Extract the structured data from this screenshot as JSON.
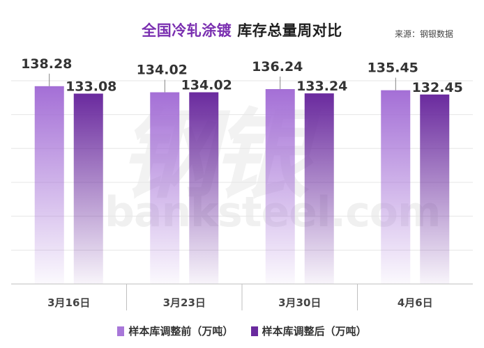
{
  "title": {
    "highlight": "全国冷轧涂镀",
    "rest": "库存总量周对比"
  },
  "source": "来源：钢银数据",
  "watermark": {
    "logo": "钢银",
    "site": "banksteel.com"
  },
  "colors": {
    "series_before": "#a877d9",
    "series_after": "#6a2a9e",
    "axis": "#bfbfbf",
    "grid": "#e6e6e6"
  },
  "chart_data": {
    "type": "bar",
    "categories": [
      "3月16日",
      "3月23日",
      "3月30日",
      "4月6日"
    ],
    "series": [
      {
        "name": "样本库调整前（万吨）",
        "values": [
          138.28,
          134.02,
          136.24,
          135.45
        ]
      },
      {
        "name": "样本库调整后（万吨）",
        "values": [
          133.08,
          134.02,
          133.24,
          132.45
        ]
      }
    ],
    "ylim": [
      0,
      145
    ],
    "grid": true,
    "legend": "bottom"
  },
  "legend": [
    {
      "label": "样本库调整前（万吨）"
    },
    {
      "label": "样本库调整后（万吨）"
    }
  ]
}
